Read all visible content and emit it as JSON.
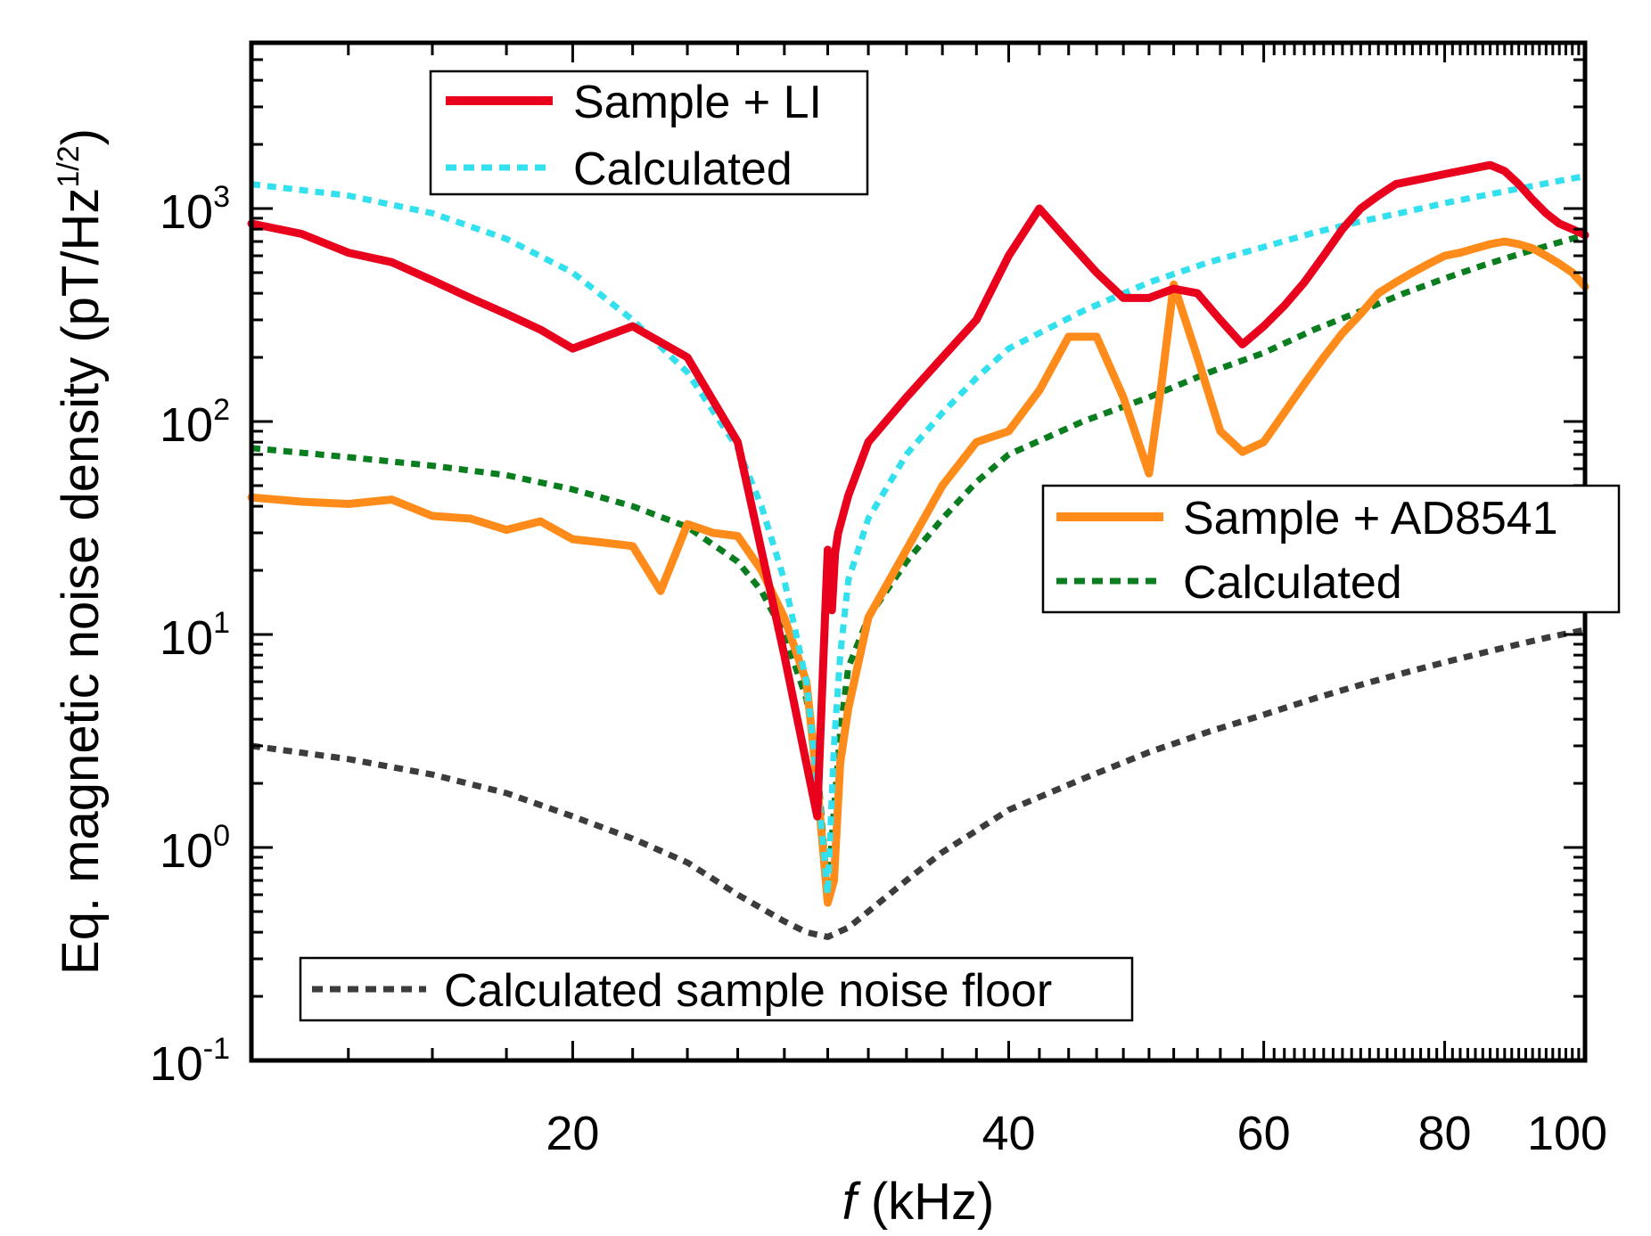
{
  "chart_data": {
    "type": "line",
    "title": "",
    "xlabel_italic": "f",
    "xlabel_rest": " (kHz)",
    "ylabel_main": "Eq. magnetic noise density (pT/Hz",
    "ylabel_sup": "1/2",
    "ylabel_close": ")",
    "x_scale": "log",
    "y_scale": "log",
    "xlim": [
      12,
      100
    ],
    "ylim": [
      0.1,
      6000
    ],
    "grid": false,
    "x_ticks": [
      {
        "value": 20,
        "label": "20"
      },
      {
        "value": 40,
        "label": "40"
      },
      {
        "value": 60,
        "label": "60"
      },
      {
        "value": 80,
        "label": "80"
      },
      {
        "value": 100,
        "label": "100"
      }
    ],
    "y_ticks": [
      {
        "value": 0.1,
        "base": "10",
        "exp": "-1"
      },
      {
        "value": 1,
        "base": "10",
        "exp": "0"
      },
      {
        "value": 10,
        "base": "10",
        "exp": "1"
      },
      {
        "value": 100,
        "base": "10",
        "exp": "2"
      },
      {
        "value": 1000,
        "base": "10",
        "exp": "3"
      }
    ],
    "series": [
      {
        "name": "Sample + LI",
        "color": "#e8001c",
        "style": "solid",
        "x": [
          12,
          13,
          14,
          15,
          16,
          17,
          18,
          19,
          20,
          22,
          24,
          26,
          28,
          29.5,
          29.8,
          30.0,
          30.2,
          30.35,
          30.5,
          31,
          32,
          34,
          36,
          38,
          40,
          42,
          44,
          46,
          48,
          50,
          52,
          54,
          56,
          58,
          60,
          62,
          64,
          66,
          68,
          70,
          72,
          74,
          76,
          78,
          80,
          82,
          84,
          86,
          88,
          90,
          92,
          94,
          96,
          98,
          100
        ],
        "values": [
          850,
          760,
          620,
          560,
          460,
          380,
          320,
          270,
          220,
          280,
          200,
          80,
          8,
          1.4,
          8,
          25,
          13,
          24,
          30,
          45,
          80,
          130,
          200,
          300,
          600,
          1000,
          700,
          500,
          380,
          380,
          420,
          400,
          300,
          230,
          280,
          350,
          450,
          600,
          800,
          1000,
          1150,
          1300,
          1350,
          1400,
          1450,
          1500,
          1550,
          1600,
          1500,
          1300,
          1100,
          950,
          850,
          800,
          750
        ]
      },
      {
        "name": "Calculated",
        "color": "#33e0ee",
        "style": "dashed",
        "x": [
          12,
          14,
          16,
          18,
          20,
          22,
          24,
          26,
          27,
          28,
          29,
          29.5,
          30,
          30.3,
          30.6,
          31,
          32,
          34,
          36,
          38,
          40,
          45,
          50,
          55,
          60,
          65,
          70,
          75,
          80,
          85,
          90,
          95,
          100
        ],
        "values": [
          1300,
          1150,
          950,
          720,
          500,
          300,
          170,
          75,
          40,
          18,
          6,
          2,
          0.6,
          3,
          8,
          18,
          35,
          70,
          110,
          160,
          220,
          330,
          450,
          560,
          660,
          770,
          870,
          960,
          1060,
          1150,
          1240,
          1330,
          1420
        ]
      },
      {
        "name": "Sample + AD8541",
        "color": "#ff8c1a",
        "style": "solid",
        "x": [
          12,
          13,
          14,
          15,
          16,
          17,
          18,
          19,
          20,
          21,
          22,
          23,
          24,
          25,
          26,
          27,
          28,
          29,
          29.5,
          30,
          30.3,
          30.6,
          31,
          32,
          34,
          36,
          38,
          40,
          42,
          44,
          46,
          48,
          50,
          51,
          52,
          54,
          56,
          58,
          60,
          62,
          64,
          66,
          68,
          70,
          72,
          74,
          76,
          78,
          80,
          82,
          84,
          86,
          88,
          90,
          92,
          94,
          96,
          98,
          100
        ],
        "values": [
          44,
          42,
          41,
          43,
          36,
          35,
          31,
          34,
          28,
          27,
          26,
          16,
          33,
          30,
          29,
          20,
          12,
          6,
          2,
          0.55,
          0.7,
          2.5,
          4.5,
          12,
          25,
          50,
          80,
          90,
          140,
          250,
          250,
          130,
          57,
          150,
          440,
          200,
          90,
          72,
          80,
          110,
          150,
          200,
          260,
          320,
          400,
          450,
          500,
          550,
          600,
          620,
          650,
          680,
          700,
          680,
          650,
          600,
          550,
          500,
          430
        ]
      },
      {
        "name": "Calculated",
        "color": "#0a7d1e",
        "style": "dashed",
        "x": [
          12,
          14,
          16,
          18,
          20,
          22,
          24,
          26,
          27,
          28,
          29,
          29.5,
          30,
          30.3,
          30.6,
          31,
          32,
          34,
          36,
          38,
          40,
          45,
          50,
          55,
          60,
          65,
          70,
          75,
          80,
          85,
          90,
          95,
          100
        ],
        "values": [
          75,
          68,
          62,
          56,
          48,
          40,
          32,
          22,
          16,
          10,
          5,
          2.5,
          0.6,
          1.5,
          3.5,
          7,
          12,
          22,
          35,
          52,
          70,
          100,
          130,
          170,
          210,
          270,
          330,
          400,
          470,
          540,
          610,
          680,
          750
        ]
      },
      {
        "name": "Calculated sample noise floor",
        "color": "#3c3c3c",
        "style": "dashed",
        "x": [
          12,
          14,
          16,
          18,
          20,
          22,
          24,
          26,
          28,
          29,
          30,
          31,
          32,
          34,
          36,
          38,
          40,
          45,
          50,
          55,
          60,
          65,
          70,
          75,
          80,
          85,
          90,
          95,
          100
        ],
        "values": [
          3.0,
          2.6,
          2.2,
          1.8,
          1.4,
          1.1,
          0.85,
          0.6,
          0.45,
          0.4,
          0.38,
          0.42,
          0.5,
          0.7,
          0.95,
          1.2,
          1.5,
          2.1,
          2.8,
          3.5,
          4.2,
          5.0,
          5.8,
          6.6,
          7.4,
          8.2,
          9.0,
          9.8,
          10.5
        ]
      }
    ],
    "legends": [
      {
        "items": [
          {
            "label": "Sample + LI",
            "color": "#e8001c",
            "style": "solid"
          },
          {
            "label": "Calculated",
            "color": "#33e0ee",
            "style": "dashed"
          }
        ]
      },
      {
        "items": [
          {
            "label": "Sample + AD8541",
            "color": "#ff8c1a",
            "style": "solid"
          },
          {
            "label": "Calculated",
            "color": "#0a7d1e",
            "style": "dashed"
          }
        ]
      },
      {
        "items": [
          {
            "label": "Calculated sample noise floor",
            "color": "#3c3c3c",
            "style": "dashed"
          }
        ]
      }
    ]
  }
}
